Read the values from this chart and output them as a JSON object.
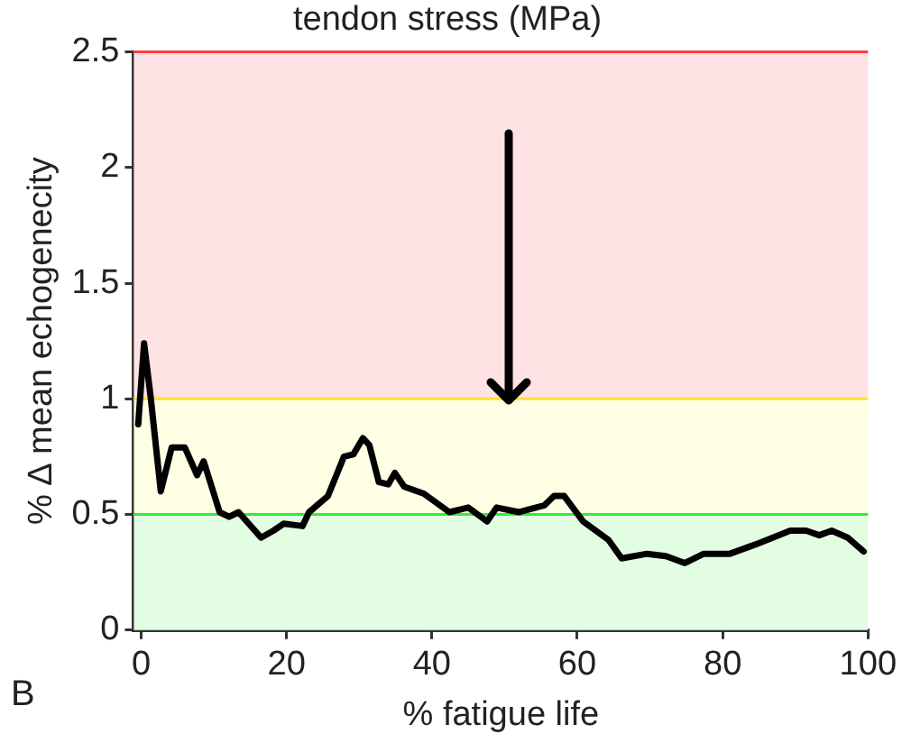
{
  "chart_data": {
    "type": "line",
    "title": "tendon stress (MPa)",
    "xlabel": "% fatigue life",
    "ylabel": "% ∆ mean echogenecity",
    "x": [
      -0.4,
      0.4,
      1.3,
      2.7,
      4.2,
      6.0,
      7.7,
      8.6,
      10.8,
      12.1,
      13.4,
      16.5,
      18.2,
      19.6,
      22.2,
      23.1,
      25.7,
      27.9,
      29.2,
      30.5,
      31.4,
      32.7,
      34.0,
      34.9,
      36.2,
      38.9,
      42.4,
      45.0,
      47.6,
      48.9,
      52.0,
      55.5,
      56.8,
      58.2,
      60.8,
      64.3,
      66.1,
      69.6,
      72.2,
      74.8,
      77.4,
      81.0,
      84.5,
      89.3,
      91.5,
      93.3,
      95.0,
      97.2,
      99.4
    ],
    "series": [
      {
        "color": "#000000",
        "values": [
          0.89,
          1.24,
          1.01,
          0.6,
          0.79,
          0.79,
          0.67,
          0.73,
          0.51,
          0.49,
          0.51,
          0.4,
          0.43,
          0.46,
          0.45,
          0.51,
          0.58,
          0.75,
          0.76,
          0.83,
          0.8,
          0.64,
          0.63,
          0.68,
          0.62,
          0.59,
          0.51,
          0.53,
          0.47,
          0.53,
          0.51,
          0.54,
          0.58,
          0.58,
          0.47,
          0.39,
          0.31,
          0.33,
          0.32,
          0.29,
          0.33,
          0.33,
          0.37,
          0.43,
          0.43,
          0.41,
          0.43,
          0.4,
          0.34
        ]
      }
    ],
    "xlim": [
      -1,
      100
    ],
    "xticks": [
      0,
      20,
      40,
      60,
      80,
      100
    ],
    "ylim": [
      0,
      2.5
    ],
    "yticks": [
      0,
      0.5,
      1,
      1.5,
      2,
      2.5
    ],
    "bands": [
      {
        "axis": "y",
        "from": 0,
        "to": 0.5,
        "color": "#e3fde3"
      },
      {
        "axis": "y",
        "from": 0.5,
        "to": 1,
        "color": "#ffffe5"
      },
      {
        "axis": "y",
        "from": 1,
        "to": 2.5,
        "color": "#ffe2e3"
      }
    ],
    "ref_lines": [
      {
        "axis": "y",
        "value": 0.5,
        "color": "#33ee33"
      },
      {
        "axis": "y",
        "value": 1,
        "color": "#ffe033"
      },
      {
        "axis": "y",
        "value": 2.5,
        "color": "#ff3b3b"
      }
    ],
    "annotations": [
      "B"
    ],
    "grid": false,
    "legend": false,
    "marker": "none",
    "line_style": "solid"
  }
}
